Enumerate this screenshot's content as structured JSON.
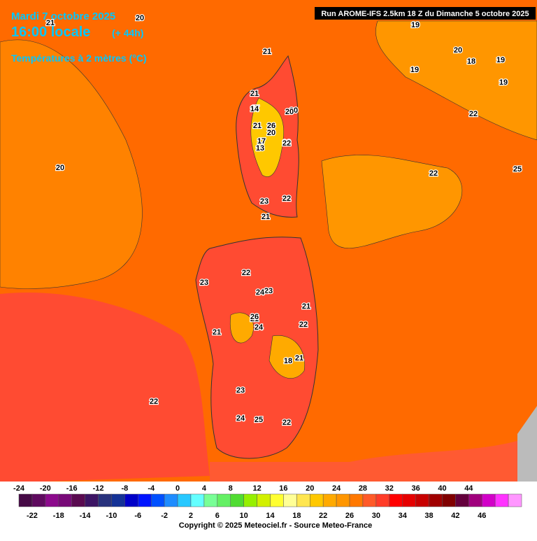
{
  "header": {
    "date": "Mardi 7 octobre 2025",
    "time": "16:00 locale",
    "lead": "(+ 44h)",
    "parameter": "Températures à 2 mètres (°C)",
    "run": "Run AROME-IFS 2.5km 18 Z du Dimanche 5 octobre 2025"
  },
  "map_labels": [
    "20",
    "21",
    "21",
    "20",
    "22",
    "20",
    "17",
    "22",
    "21",
    "20",
    "21",
    "21",
    "22",
    "14",
    "20",
    "26",
    "17",
    "13",
    "22",
    "23",
    "21",
    "22",
    "23",
    "24",
    "23",
    "21",
    "22",
    "21",
    "26",
    "24",
    "18",
    "21",
    "23",
    "24",
    "25",
    "22",
    "22",
    "19",
    "19",
    "18",
    "19",
    "20",
    "25",
    "19",
    "22"
  ],
  "legend": {
    "top_labels": [
      "-24",
      "-20",
      "-16",
      "-12",
      "-8",
      "-4",
      "0",
      "4",
      "8",
      "12",
      "16",
      "20",
      "24",
      "28",
      "32",
      "36",
      "40",
      "44"
    ],
    "bottom_labels": [
      "-22",
      "-18",
      "-14",
      "-10",
      "-6",
      "-2",
      "2",
      "6",
      "10",
      "14",
      "18",
      "22",
      "26",
      "30",
      "34",
      "38",
      "42",
      "46"
    ],
    "colors": [
      "#460a46",
      "#5f0a5f",
      "#8c0a8c",
      "#780a78",
      "#5a0a50",
      "#3c1464",
      "#28327d",
      "#143296",
      "#0000c8",
      "#0014ff",
      "#0050ff",
      "#1e8cff",
      "#28c8ff",
      "#64ffff",
      "#78ff96",
      "#64f064",
      "#50dc32",
      "#96f000",
      "#d2f000",
      "#ffff32",
      "#ffff96",
      "#ffe650",
      "#ffc800",
      "#ffaa00",
      "#ff9600",
      "#ff7800",
      "#ff5a28",
      "#ff3c28",
      "#ff0000",
      "#e60000",
      "#c80000",
      "#a00000",
      "#800000",
      "#64003c",
      "#a0007d",
      "#d200c8",
      "#ff32ff",
      "#ff96ff"
    ]
  },
  "footer": {
    "copyright": "Copyright © 2025 Meteociel.fr - Source Meteo-France"
  }
}
